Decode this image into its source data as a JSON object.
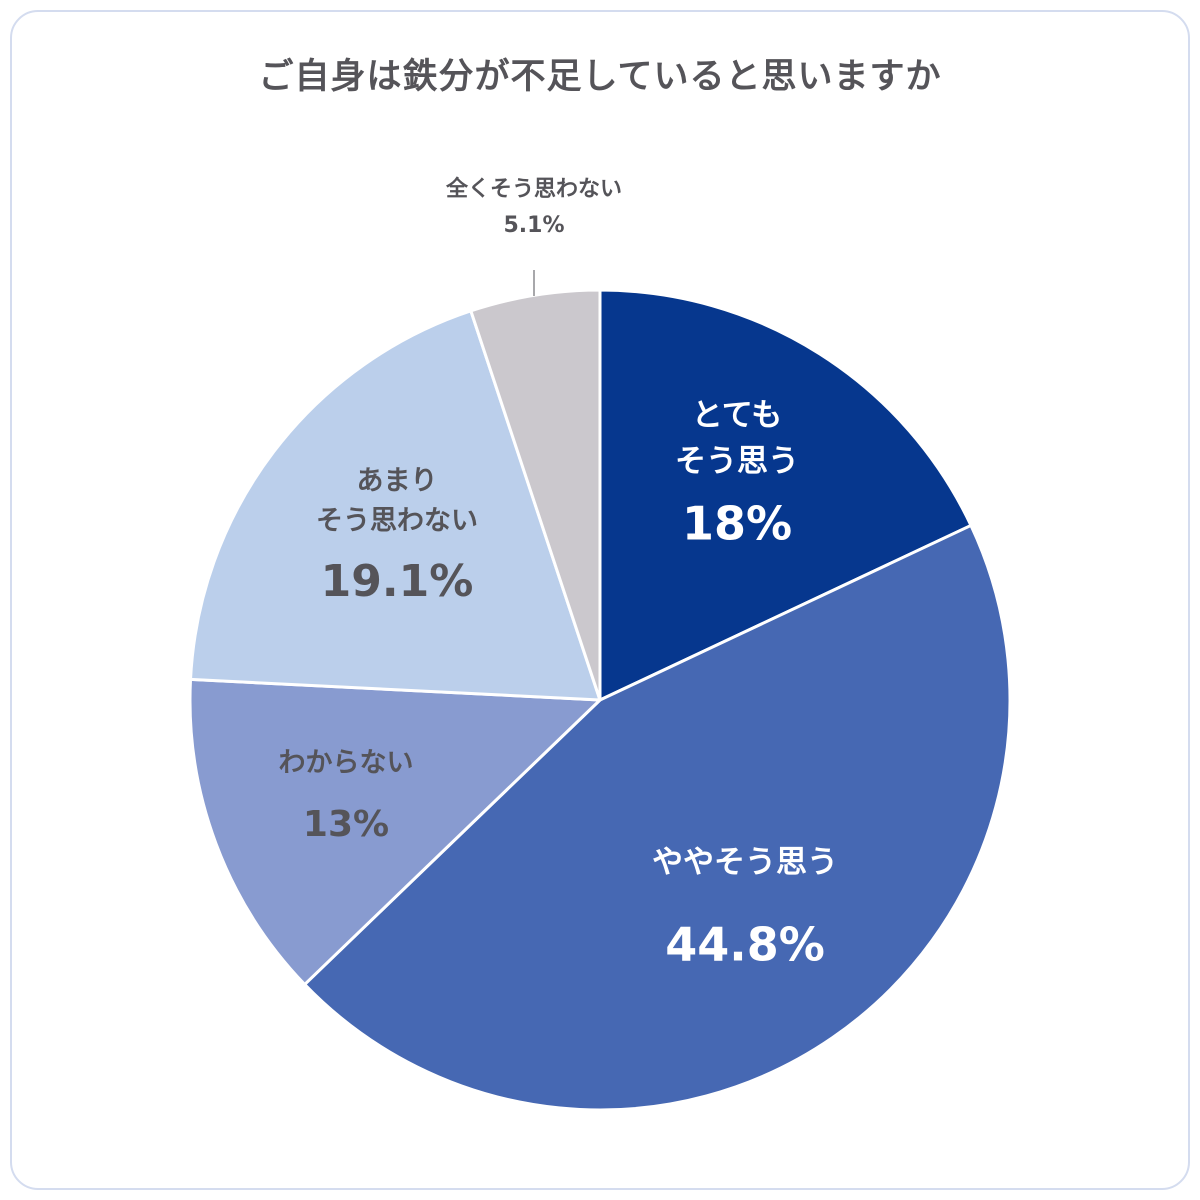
{
  "chart_data": {
    "type": "pie",
    "title": "ご自身は鉄分が不足していると思いますか",
    "start_angle_deg": 0,
    "direction": "clockwise",
    "legend": "none",
    "slices": [
      {
        "name_lines": [
          "とても",
          "そう思う"
        ],
        "value": 18,
        "value_label": "18%",
        "color": "#06378e",
        "text_color": "#ffffff"
      },
      {
        "name_lines": [
          "ややそう思う"
        ],
        "value": 44.8,
        "value_label": "44.8%",
        "color": "#4668b3",
        "text_color": "#ffffff"
      },
      {
        "name_lines": [
          "わからない"
        ],
        "value": 13,
        "value_label": "13%",
        "color": "#889bd0",
        "text_color": "#555459"
      },
      {
        "name_lines": [
          "あまり",
          "そう思わない"
        ],
        "value": 19.1,
        "value_label": "19.1%",
        "color": "#bbcfeb",
        "text_color": "#555459"
      },
      {
        "name_lines": [
          "全くそう思わない"
        ],
        "value": 5.1,
        "value_label": "5.1%",
        "color": "#cbc8cd",
        "text_color": "#555459"
      }
    ]
  }
}
